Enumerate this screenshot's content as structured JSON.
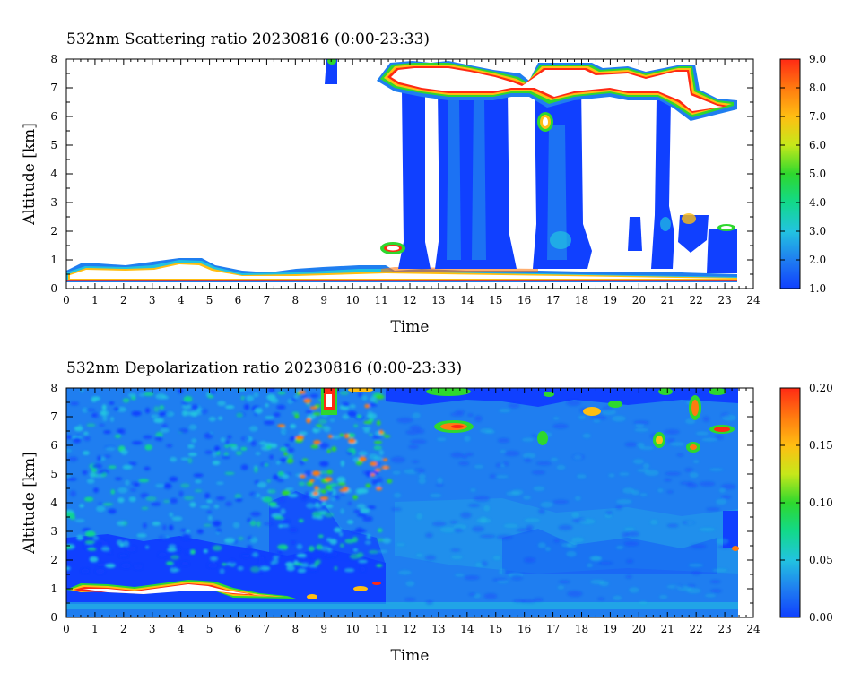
{
  "chart_data": [
    {
      "type": "heatmap",
      "title": "532nm Scattering ratio  20230816 (0:00-23:33)",
      "xlabel": "Time",
      "ylabel": "Altitude [km]",
      "xlim": [
        0,
        24
      ],
      "ylim": [
        0,
        8
      ],
      "x_ticks": [
        "0",
        "1",
        "2",
        "3",
        "4",
        "5",
        "6",
        "7",
        "8",
        "9",
        "10",
        "11",
        "12",
        "13",
        "14",
        "15",
        "16",
        "17",
        "18",
        "19",
        "20",
        "21",
        "22",
        "23",
        "24"
      ],
      "y_ticks": [
        "0",
        "1",
        "2",
        "3",
        "4",
        "5",
        "6",
        "7",
        "8"
      ],
      "colorbar": {
        "min": 1.0,
        "max": 9.0,
        "ticks": [
          "1.0",
          "2.0",
          "3.0",
          "4.0",
          "5.0",
          "6.0",
          "7.0",
          "8.0",
          "9.0"
        ],
        "colors": [
          "#1040ff",
          "#1f7ef0",
          "#22c3e0",
          "#12d98a",
          "#2ed82e",
          "#c6e81a",
          "#ffbe12",
          "#ff7a10",
          "#ff2a14"
        ]
      },
      "features": [
        {
          "kind": "boundary_layer_cloud",
          "t_start": 0.0,
          "t_end": 23.4,
          "alt_bottom": 0.3,
          "alt_top": 0.9,
          "ratio_max": 9.0
        },
        {
          "kind": "cloud_column",
          "t_start": 11.8,
          "t_end": 12.6,
          "alt_bottom": 0.5,
          "alt_top": 7.0,
          "ratio": 1.6
        },
        {
          "kind": "cloud_column",
          "t_start": 12.9,
          "t_end": 15.3,
          "alt_bottom": 0.5,
          "alt_top": 6.8,
          "ratio": 1.8
        },
        {
          "kind": "cloud_column",
          "t_start": 16.6,
          "t_end": 18.1,
          "alt_bottom": 0.5,
          "alt_top": 6.2,
          "ratio": 1.9
        },
        {
          "kind": "cloud_column",
          "t_start": 20.7,
          "t_end": 21.1,
          "alt_bottom": 0.5,
          "alt_top": 6.2,
          "ratio": 1.7
        },
        {
          "kind": "upper_cloud",
          "t_start": 11.0,
          "t_end": 23.4,
          "alt_bottom": 6.6,
          "alt_top": 8.0,
          "ratio_max": 9.0
        }
      ]
    },
    {
      "type": "heatmap",
      "title": "532nm Depolarization ratio  20230816 (0:00-23:33)",
      "xlabel": "Time",
      "ylabel": "Altitude [km]",
      "xlim": [
        0,
        24
      ],
      "ylim": [
        0,
        8
      ],
      "x_ticks": [
        "0",
        "1",
        "2",
        "3",
        "4",
        "5",
        "6",
        "7",
        "8",
        "9",
        "10",
        "11",
        "12",
        "13",
        "14",
        "15",
        "16",
        "17",
        "18",
        "19",
        "20",
        "21",
        "22",
        "23",
        "24"
      ],
      "y_ticks": [
        "0",
        "1",
        "2",
        "3",
        "4",
        "5",
        "6",
        "7",
        "8"
      ],
      "colorbar": {
        "min": 0.0,
        "max": 0.2,
        "ticks": [
          "0.00",
          "0.05",
          "0.10",
          "0.15",
          "0.20"
        ],
        "colors": [
          "#1040ff",
          "#1f7ef0",
          "#22c3e0",
          "#12d98a",
          "#2ed82e",
          "#c6e81a",
          "#ffbe12",
          "#ff7a10",
          "#ff2a14"
        ]
      },
      "features": [
        {
          "kind": "high_depol_layer",
          "t_start": 0.0,
          "t_end": 8.5,
          "alt_bottom": 0.9,
          "alt_top": 1.3,
          "ratio_max": 0.2
        },
        {
          "kind": "low_depol_region",
          "t_start": 0.0,
          "t_end": 11.0,
          "alt_bottom": 0.3,
          "alt_top": 2.5,
          "ratio": 0.01
        },
        {
          "kind": "scattered_high_depol",
          "t_start": 7.0,
          "t_end": 11.2,
          "alt_bottom": 4.0,
          "alt_top": 8.0,
          "ratio_max": 0.18
        },
        {
          "kind": "ice_cloud_top",
          "t_start": 13.0,
          "t_end": 23.4,
          "alt_bottom": 5.8,
          "alt_top": 8.0,
          "ratio_max": 0.2
        }
      ]
    }
  ]
}
